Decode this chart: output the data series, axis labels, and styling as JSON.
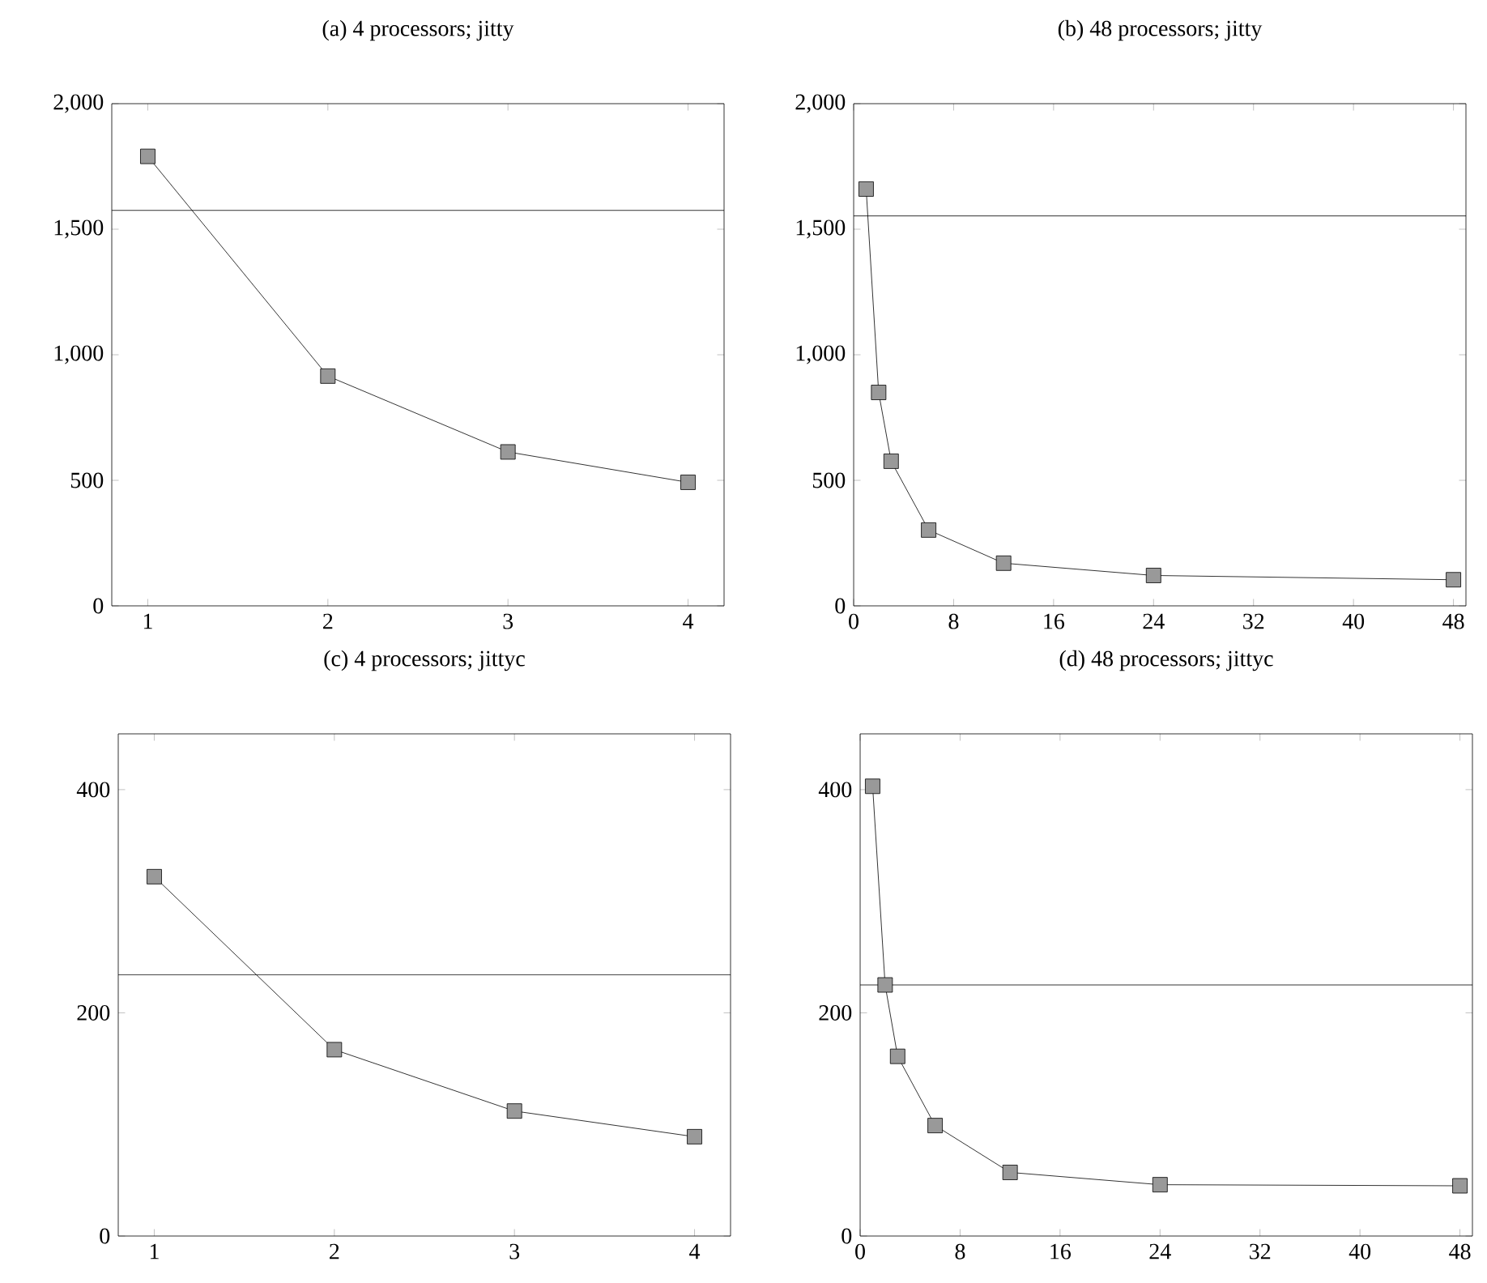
{
  "chart_data": [
    {
      "type": "line",
      "title": "(a) 4 processors; jitty",
      "x": [
        1,
        2,
        3,
        4
      ],
      "marker": "square",
      "line_style": "solid",
      "xlim": [
        0.8,
        4.2
      ],
      "ylim": [
        0,
        2000
      ],
      "xticks": [
        1,
        2,
        3,
        4
      ],
      "yticks": [
        0,
        {
          "value": 500,
          "label": "500"
        },
        {
          "value": 1000,
          "label": "1,000"
        },
        {
          "value": 1500,
          "label": "1,500"
        },
        {
          "value": 2000,
          "label": "2,000"
        }
      ],
      "series": [
        {
          "color": "#000000",
          "values": [
            1790,
            915,
            613,
            492
          ]
        }
      ],
      "ref_lines": [
        {
          "axis": "y",
          "value": 1575,
          "color": "#000000"
        }
      ]
    },
    {
      "type": "line",
      "title": "(b) 48 processors; jitty",
      "x": [
        1,
        2,
        3,
        6,
        12,
        24,
        48
      ],
      "marker": "square",
      "line_style": "solid",
      "xlim": [
        0,
        49
      ],
      "ylim": [
        0,
        2000
      ],
      "xticks": [
        0,
        8,
        16,
        24,
        32,
        40,
        48
      ],
      "yticks": [
        0,
        {
          "value": 500,
          "label": "500"
        },
        {
          "value": 1000,
          "label": "1,000"
        },
        {
          "value": 1500,
          "label": "1,500"
        },
        {
          "value": 2000,
          "label": "2,000"
        }
      ],
      "series": [
        {
          "color": "#000000",
          "values": [
            1660,
            850,
            576,
            302,
            170,
            121,
            104
          ]
        }
      ],
      "ref_lines": [
        {
          "axis": "y",
          "value": 1553,
          "color": "#000000"
        }
      ]
    },
    {
      "type": "line",
      "title": "(c) 4 processors; jittyc",
      "x": [
        1,
        2,
        3,
        4
      ],
      "marker": "square",
      "line_style": "solid",
      "xlim": [
        0.8,
        4.2
      ],
      "ylim": [
        0,
        450
      ],
      "xticks": [
        1,
        2,
        3,
        4
      ],
      "yticks": [
        0,
        200,
        400
      ],
      "series": [
        {
          "color": "#000000",
          "values": [
            322,
            167,
            112,
            89
          ]
        }
      ],
      "ref_lines": [
        {
          "axis": "y",
          "value": 234,
          "color": "#000000"
        }
      ]
    },
    {
      "type": "line",
      "title": "(d) 48 processors; jittyc",
      "x": [
        1,
        2,
        3,
        6,
        12,
        24,
        48
      ],
      "marker": "square",
      "line_style": "solid",
      "xlim": [
        0,
        49
      ],
      "ylim": [
        0,
        450
      ],
      "xticks": [
        0,
        8,
        16,
        24,
        32,
        40,
        48
      ],
      "yticks": [
        0,
        200,
        400
      ],
      "series": [
        {
          "color": "#000000",
          "values": [
            403,
            225,
            161,
            99,
            57,
            46,
            45
          ]
        }
      ],
      "ref_lines": [
        {
          "axis": "y",
          "value": 225,
          "color": "#000000"
        }
      ]
    }
  ]
}
